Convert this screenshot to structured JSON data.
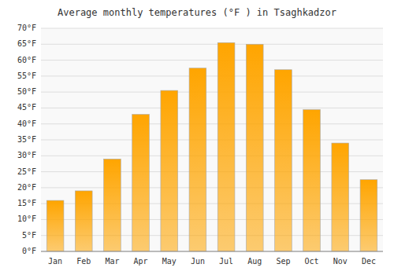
{
  "chart_data": {
    "type": "bar",
    "title": "Average monthly temperatures (°F ) in Tsaghkadzor",
    "categories": [
      "Jan",
      "Feb",
      "Mar",
      "Apr",
      "May",
      "Jun",
      "Jul",
      "Aug",
      "Sep",
      "Oct",
      "Nov",
      "Dec"
    ],
    "values": [
      16,
      19,
      29,
      43,
      50.5,
      57.5,
      65.5,
      65,
      57,
      44.5,
      34,
      22.5
    ],
    "color": "#FFA500",
    "ylim": [
      0,
      70
    ],
    "yticks": [
      {
        "value": 0,
        "label": "0°F"
      },
      {
        "value": 5,
        "label": "5°F"
      },
      {
        "value": 10,
        "label": "10°F"
      },
      {
        "value": 15,
        "label": "15°F"
      },
      {
        "value": 20,
        "label": "20°F"
      },
      {
        "value": 25,
        "label": "25°F"
      },
      {
        "value": 30,
        "label": "30°F"
      },
      {
        "value": 35,
        "label": "35°F"
      },
      {
        "value": 40,
        "label": "40°F"
      },
      {
        "value": 45,
        "label": "45°F"
      },
      {
        "value": 50,
        "label": "50°F"
      },
      {
        "value": 55,
        "label": "55°F"
      },
      {
        "value": 60,
        "label": "60°F"
      },
      {
        "value": 65,
        "label": "65°F"
      },
      {
        "value": 70,
        "label": "70°F"
      }
    ],
    "grid": true
  }
}
